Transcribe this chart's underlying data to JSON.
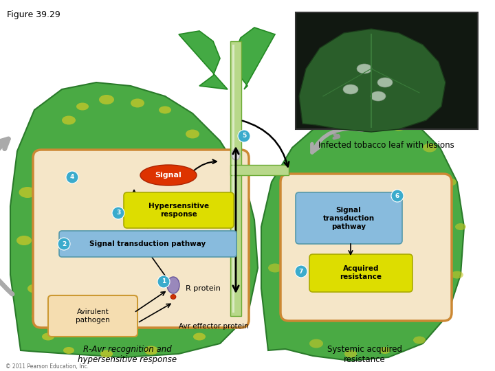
{
  "figure_label": "Figure 39.29",
  "photo_label": "Infected tobacco leaf with lesions",
  "bottom_left": "R-Avr recognition and\nhypersensitive response",
  "bottom_right": "Systemic acquired\nresistance",
  "copyright": "© 2011 Pearson Education, Inc.",
  "circle_color": "#3aabcc",
  "leaf_dark": "#2e8b2e",
  "leaf_mid": "#44aa44",
  "leaf_spot": "#c8c828",
  "cell_fill": "#f5e6c8",
  "cell_border": "#cc8833",
  "signal_red": "#dd3300",
  "hyper_yellow": "#dddd00",
  "sig_blue": "#88bbdd",
  "acquired_yellow": "#dddd00",
  "background": "#ffffff"
}
